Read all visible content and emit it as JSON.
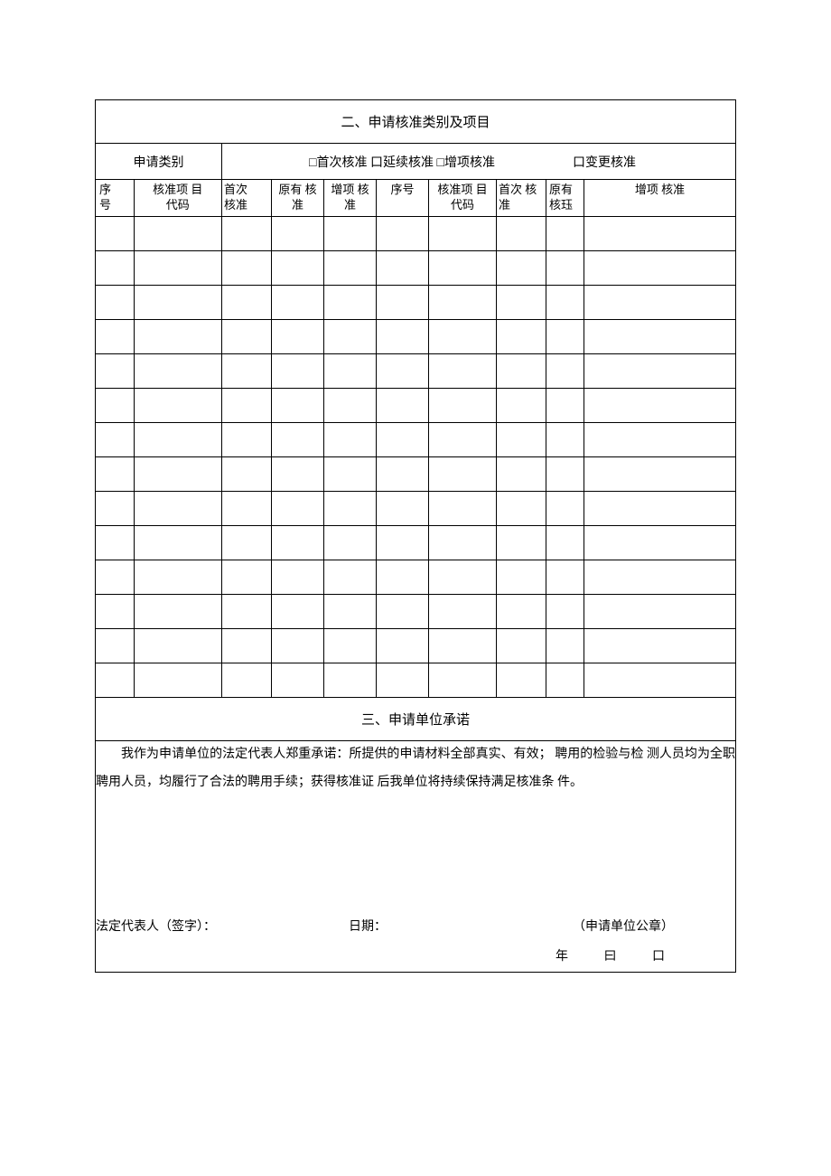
{
  "section2": {
    "title": "二、申请核准类别及项目",
    "categoryLabel": "申请类别",
    "checkboxGroupA": "□首次核准  口延续核准  □增项核准",
    "checkboxGroupB": "口变更核准",
    "headers": {
      "seq1_line1": "序",
      "seq1_line2": "号",
      "code1_line1": "核准项  目",
      "code1_line2": "代码",
      "first1_line1": "首次",
      "first1_line2": "核准",
      "orig1_line1": "原有 核",
      "orig1_line2": "准",
      "add1_line1": "增项 核",
      "add1_line2": "准",
      "seq2": "序号",
      "code2_line1": "核准项  目",
      "code2_line2": "代码",
      "first2_line1": "首次 核",
      "first2_line2": "准",
      "orig2_line1": "原有",
      "orig2_line2": "核珏",
      "add2": "增项 核准"
    },
    "emptyRowCount": 14
  },
  "section3": {
    "title": "三、申请单位承诺",
    "promiseText": "我作为申请单位的法定代表人郑重承诺：所提供的申请材料全部真实、有效；   聘用的检验与检 测人员均为全职聘用人员，均履行了合法的聘用手续；获得核准证  后我单位将持续保持满足核准条 件。",
    "signatureLabel": "法定代表人（签字）：",
    "dateLabel": "日期：",
    "sealLabel": "（申请单位公章）",
    "dateFields": "年 曰 口"
  },
  "colors": {
    "border": "#000000",
    "background": "#ffffff",
    "text": "#000000"
  }
}
